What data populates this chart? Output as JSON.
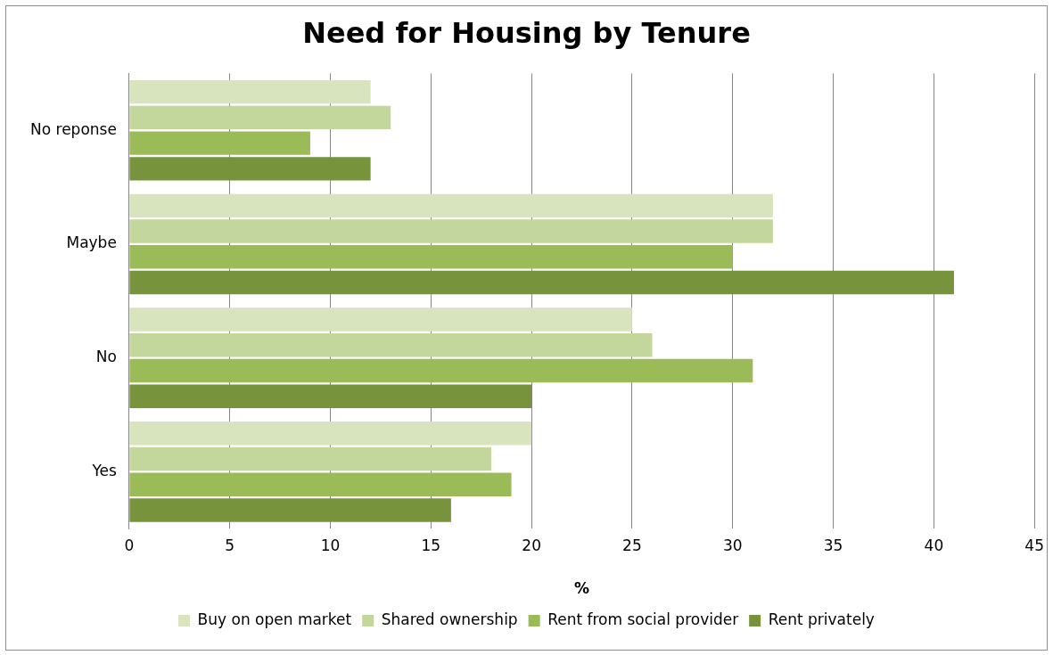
{
  "chart_data": {
    "type": "bar",
    "orientation": "horizontal",
    "title": "Need for Housing by Tenure",
    "xlabel": "%",
    "categories": [
      "No reponse",
      "Maybe",
      "No",
      "Yes"
    ],
    "series": [
      {
        "name": "Buy on open market",
        "color": "#d7e4bd",
        "values": [
          12,
          32,
          25,
          20
        ]
      },
      {
        "name": "Shared ownership",
        "color": "#c3d69b",
        "values": [
          13,
          32,
          26,
          18
        ]
      },
      {
        "name": "Rent from social provider",
        "color": "#9bbb59",
        "values": [
          9,
          30,
          31,
          19
        ]
      },
      {
        "name": "Rent privately",
        "color": "#77933c",
        "values": [
          12,
          41,
          20,
          16
        ]
      }
    ],
    "xlim": [
      0,
      45
    ],
    "xticks": [
      0,
      5,
      10,
      15,
      20,
      25,
      30,
      35,
      40,
      45
    ],
    "grid": "x",
    "legend": "bottom"
  }
}
